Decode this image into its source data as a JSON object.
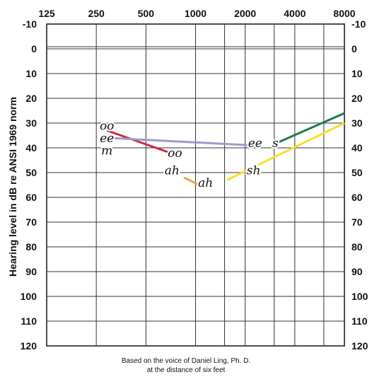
{
  "chart_data": {
    "type": "line",
    "title": "",
    "ylabel": "Hearing level in dB re ANSI 1969 norm",
    "x_ticks": [
      "125",
      "250",
      "500",
      "1000",
      "2000",
      "4000",
      "8000"
    ],
    "y_ticks": [
      "-10",
      "0",
      "10",
      "20",
      "30",
      "40",
      "50",
      "60",
      "70",
      "80",
      "90",
      "100",
      "110",
      "120"
    ],
    "xlim": [
      125,
      8000
    ],
    "ylim": [
      -10,
      120
    ],
    "x_scale": "log2",
    "grid": true,
    "series": [
      {
        "color": "#cc2a3c",
        "points": [
          [
            290,
            33
          ],
          [
            700,
            42
          ]
        ]
      },
      {
        "color": "#9a9ccc",
        "points": [
          [
            300,
            36
          ],
          [
            2200,
            39
          ]
        ]
      },
      {
        "color": "#f0a040",
        "points": [
          [
            850,
            52
          ],
          [
            1050,
            55
          ]
        ]
      },
      {
        "color": "#1f7a50",
        "points": [
          [
            3000,
            38.5
          ],
          [
            8000,
            26
          ]
        ]
      },
      {
        "color": "#f5e02a",
        "points": [
          [
            1550,
            53
          ],
          [
            8000,
            30
          ]
        ]
      }
    ],
    "annotations": [
      {
        "text": "oo",
        "x": 290,
        "y": 31
      },
      {
        "text": "ee",
        "x": 290,
        "y": 36
      },
      {
        "text": "m",
        "x": 290,
        "y": 41
      },
      {
        "text": "oo",
        "x": 750,
        "y": 42
      },
      {
        "text": "ah",
        "x": 720,
        "y": 49
      },
      {
        "text": "ah",
        "x": 1150,
        "y": 54
      },
      {
        "text": "ee",
        "x": 2300,
        "y": 38
      },
      {
        "text": "s",
        "x": 3050,
        "y": 38
      },
      {
        "text": "sh",
        "x": 2250,
        "y": 49
      }
    ],
    "caption_line1": "Based on the voice of Daniel Ling, Ph. D.",
    "caption_line2": "at the distance of six feet"
  }
}
